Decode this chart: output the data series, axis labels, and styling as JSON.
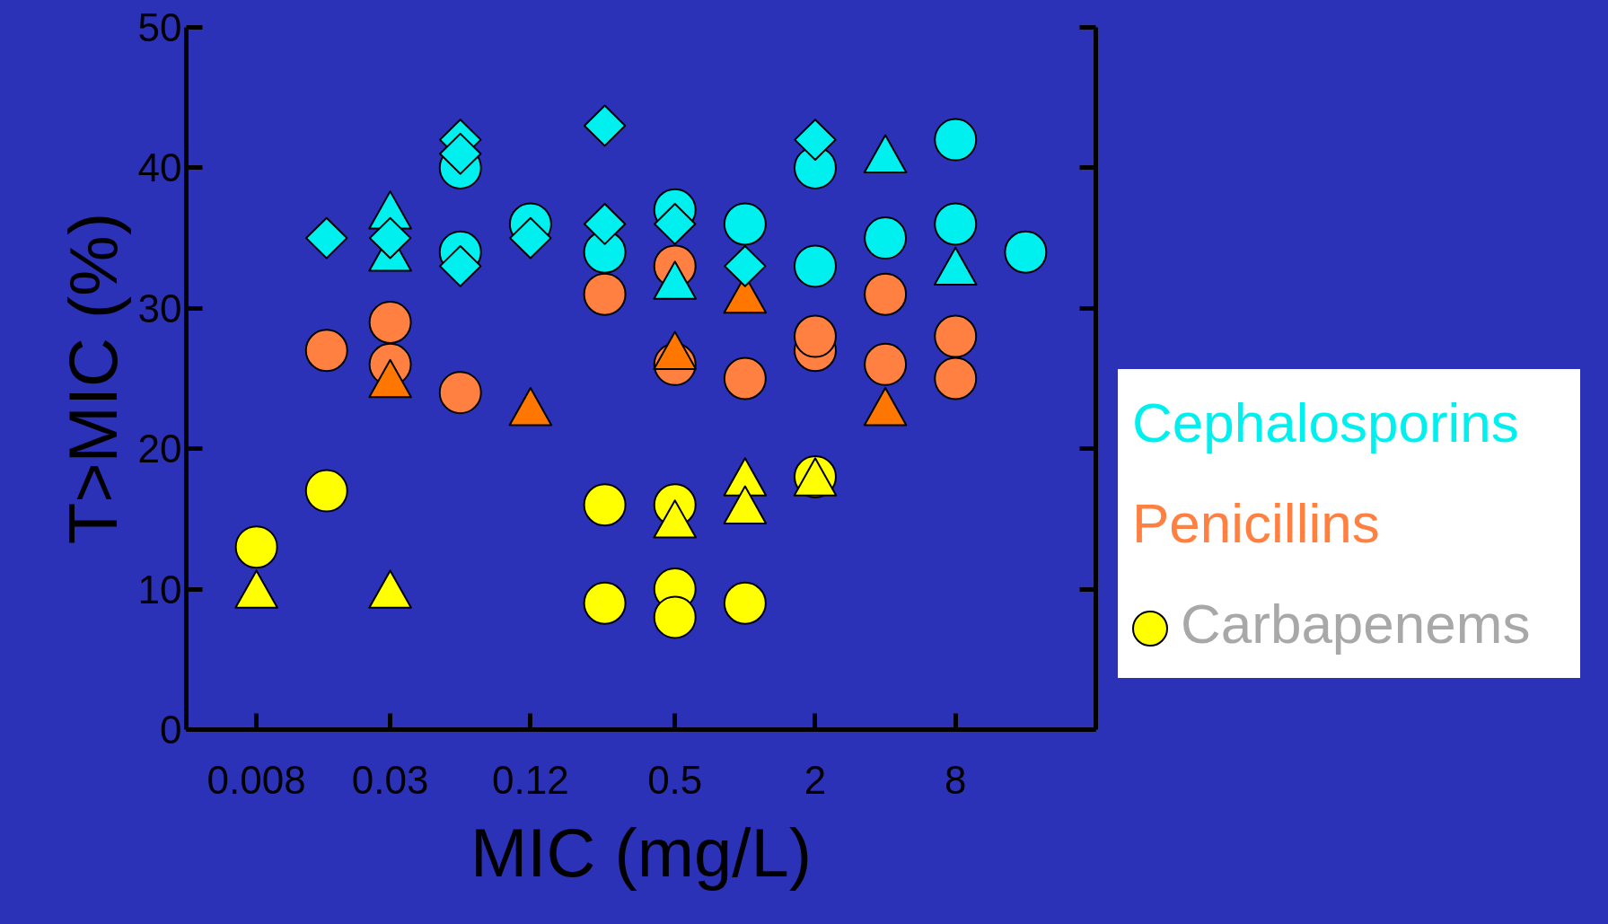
{
  "chart_data": {
    "type": "scatter",
    "xlabel": "MIC (mg/L)",
    "ylabel": "T>MIC (%)",
    "log": "x",
    "xlim": [
      0.004,
      32
    ],
    "xticks": [
      0.008,
      0.03,
      0.12,
      0.5,
      2,
      8
    ],
    "ylim": [
      0,
      50
    ],
    "yticks": [
      0,
      10,
      20,
      30,
      40,
      50
    ],
    "grid": false,
    "legend": "right",
    "series": [
      {
        "name": "Carbapenems",
        "color": "#ffff00",
        "marker": "circle",
        "x": [
          0.008,
          0.016,
          0.25,
          0.25,
          0.5,
          0.5,
          0.5,
          1,
          2
        ],
        "values": [
          13,
          17,
          16,
          9,
          16,
          10,
          8,
          9,
          18
        ]
      },
      {
        "color": "#ffff00",
        "marker": "triangle",
        "x": [
          0.008,
          0.03,
          0.5,
          1,
          1,
          2
        ],
        "values": [
          10,
          10,
          15,
          18,
          16,
          18
        ]
      },
      {
        "name": "Penicillins",
        "color": "#ff8040",
        "marker": "circle",
        "x": [
          0.016,
          0.03,
          0.03,
          0.06,
          0.25,
          0.5,
          0.5,
          1,
          2,
          2,
          4,
          4,
          8,
          8
        ],
        "values": [
          27,
          29,
          26,
          24,
          31,
          33,
          26,
          25,
          27,
          28,
          31,
          26,
          28,
          25
        ]
      },
      {
        "color": "#ff7700",
        "marker": "triangle",
        "x": [
          0.03,
          0.12,
          0.5,
          1,
          4
        ],
        "values": [
          25,
          23,
          27,
          31,
          23
        ]
      },
      {
        "name": "Cephalosporins",
        "color": "#00f0f0",
        "marker": "circle",
        "x": [
          0.06,
          0.06,
          0.12,
          0.25,
          0.5,
          1,
          2,
          2,
          4,
          8,
          8,
          16
        ],
        "values": [
          40,
          34,
          36,
          34,
          37,
          36,
          40,
          33,
          35,
          42,
          36,
          34
        ]
      },
      {
        "color": "#00f0f0",
        "marker": "triangle",
        "x": [
          0.03,
          0.03,
          0.5,
          4,
          8
        ],
        "values": [
          37,
          34,
          32,
          41,
          33
        ]
      },
      {
        "color": "#00f0f0",
        "marker": "diamond",
        "x": [
          0.016,
          0.03,
          0.06,
          0.06,
          0.06,
          0.12,
          0.25,
          0.25,
          0.5,
          1,
          2
        ],
        "values": [
          35,
          35,
          42,
          41,
          33,
          35,
          43,
          36,
          36,
          33,
          42
        ]
      }
    ]
  }
}
